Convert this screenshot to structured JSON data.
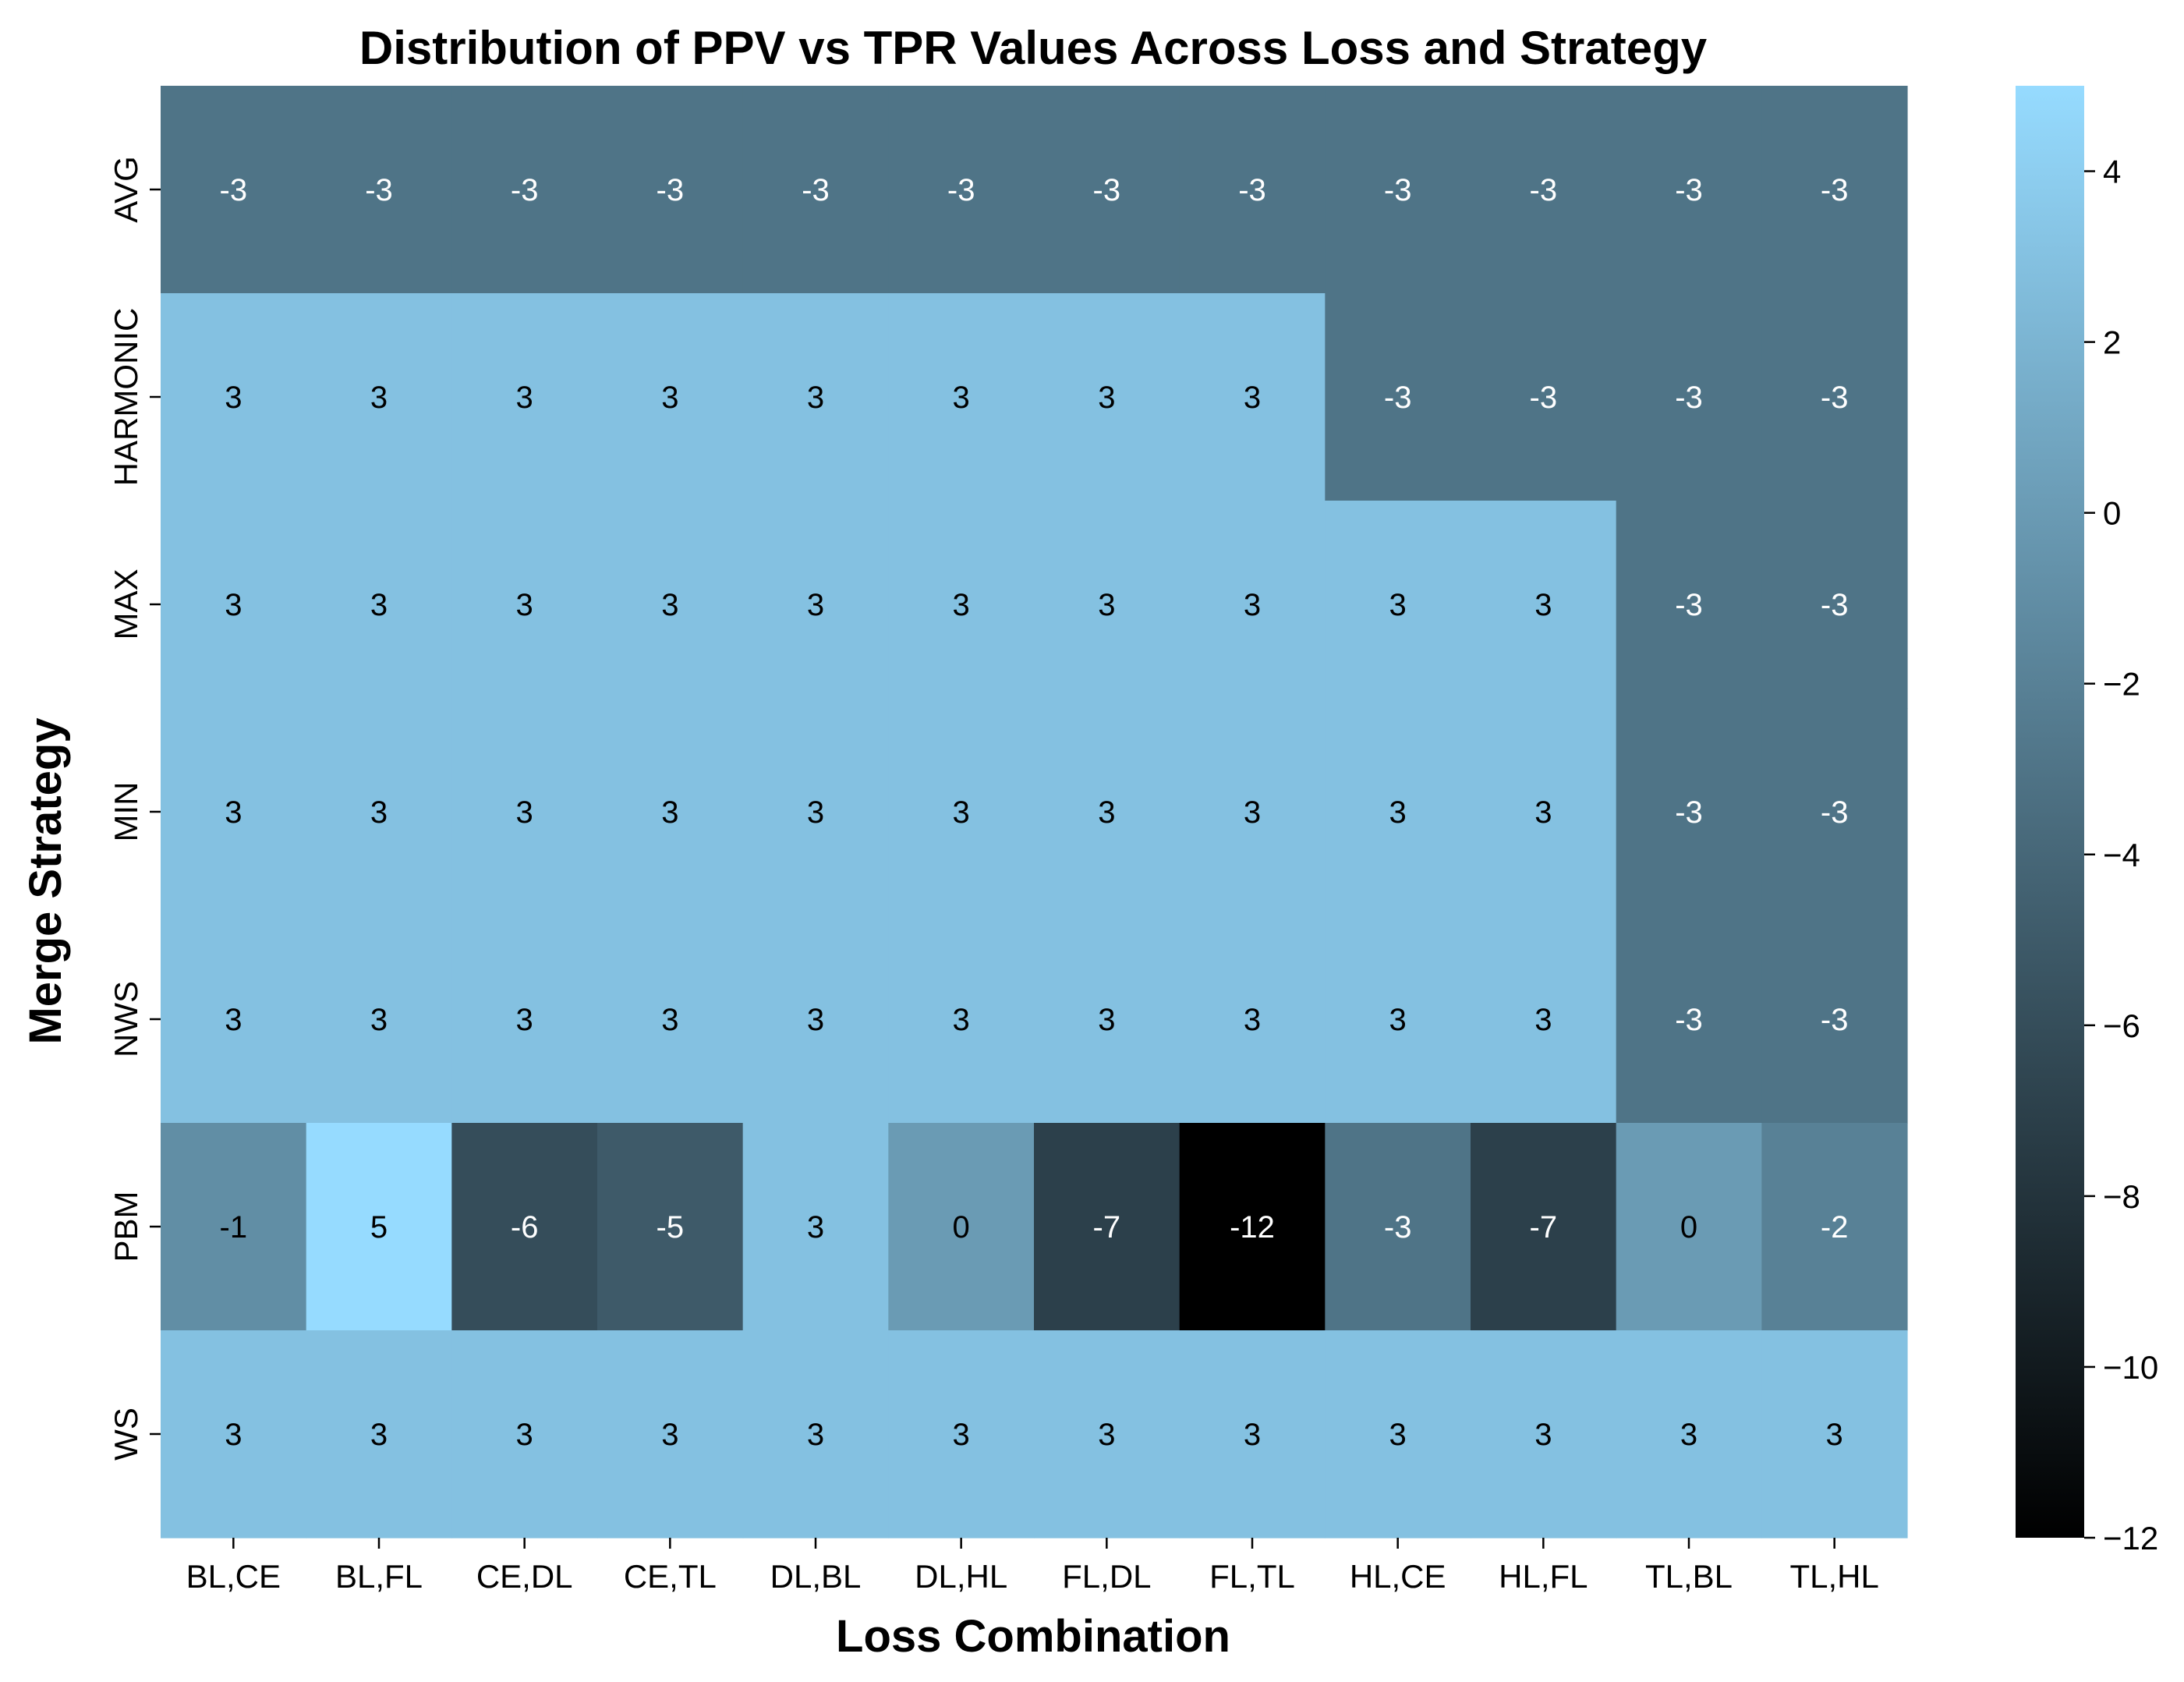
{
  "chart_data": {
    "type": "heatmap",
    "title": "Distribution of PPV vs TPR Values Across Loss and Strategy",
    "xlabel": "Loss Combination",
    "ylabel": "Merge Strategy",
    "x_categories": [
      "BL,CE",
      "BL,FL",
      "CE,DL",
      "CE,TL",
      "DL,BL",
      "DL,HL",
      "FL,DL",
      "FL,TL",
      "HL,CE",
      "HL,FL",
      "TL,BL",
      "TL,HL"
    ],
    "y_categories": [
      "AVG",
      "HARMONIC",
      "MAX",
      "MIN",
      "NWS",
      "PBM",
      "WS"
    ],
    "values": [
      [
        -3,
        -3,
        -3,
        -3,
        -3,
        -3,
        -3,
        -3,
        -3,
        -3,
        -3,
        -3
      ],
      [
        3,
        3,
        3,
        3,
        3,
        3,
        3,
        3,
        -3,
        -3,
        -3,
        -3
      ],
      [
        3,
        3,
        3,
        3,
        3,
        3,
        3,
        3,
        3,
        3,
        -3,
        -3
      ],
      [
        3,
        3,
        3,
        3,
        3,
        3,
        3,
        3,
        3,
        3,
        -3,
        -3
      ],
      [
        3,
        3,
        3,
        3,
        3,
        3,
        3,
        3,
        3,
        3,
        -3,
        -3
      ],
      [
        -1,
        5,
        -6,
        -5,
        3,
        0,
        -7,
        -12,
        -3,
        -7,
        0,
        -2
      ],
      [
        3,
        3,
        3,
        3,
        3,
        3,
        3,
        3,
        3,
        3,
        3,
        3
      ]
    ],
    "cell_labels": [
      [
        "-3",
        "-3",
        "-3",
        "-3",
        "-3",
        "-3",
        "-3",
        "-3",
        "-3",
        "-3",
        "-3",
        "-3"
      ],
      [
        "3",
        "3",
        "3",
        "3",
        "3",
        "3",
        "3",
        "3",
        "-3",
        "-3",
        "-3",
        "-3"
      ],
      [
        "3",
        "3",
        "3",
        "3",
        "3",
        "3",
        "3",
        "3",
        "3",
        "3",
        "-3",
        "-3"
      ],
      [
        "3",
        "3",
        "3",
        "3",
        "3",
        "3",
        "3",
        "3",
        "3",
        "3",
        "-3",
        "-3"
      ],
      [
        "3",
        "3",
        "3",
        "3",
        "3",
        "3",
        "3",
        "3",
        "3",
        "3",
        "-3",
        "-3"
      ],
      [
        "-1",
        "5",
        "-6",
        "-5",
        "3",
        "0",
        "-7",
        "-12",
        "-3",
        "-7",
        "0",
        "-2"
      ],
      [
        "3",
        "3",
        "3",
        "3",
        "3",
        "3",
        "3",
        "3",
        "3",
        "3",
        "3",
        "3"
      ]
    ],
    "color_range": [
      -12,
      5
    ],
    "colormap": {
      "low": "#000000",
      "high": "#96dbff"
    },
    "colorbar_ticks": [
      4,
      2,
      0,
      -2,
      -4,
      -6,
      -8,
      -10,
      -12
    ],
    "colorbar_tick_labels": [
      "4",
      "2",
      "0",
      "−2",
      "−4",
      "−6",
      "−8",
      "−10",
      "−12"
    ],
    "colorbar_placement": "right",
    "grid": false
  }
}
